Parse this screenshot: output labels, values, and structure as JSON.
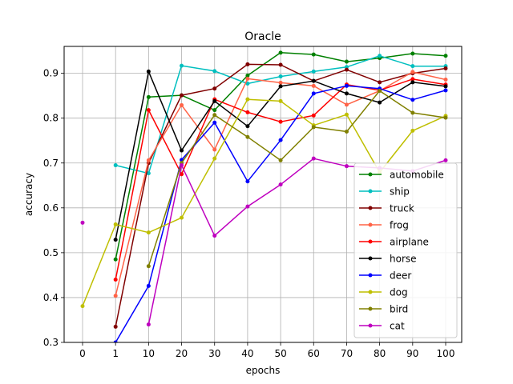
{
  "chart_data": {
    "type": "line",
    "title": "Oracle",
    "xlabel": "epochs",
    "ylabel": "accuracy",
    "x": [
      "0",
      "1",
      "10",
      "20",
      "30",
      "40",
      "50",
      "60",
      "70",
      "80",
      "90",
      "100"
    ],
    "ylim": [
      0.3,
      0.96
    ],
    "yticks": [
      0.3,
      0.4,
      0.5,
      0.6,
      0.7,
      0.8,
      0.9
    ],
    "grid": true,
    "legend_position": "lower-right",
    "series": [
      {
        "name": "automobile",
        "color": "#008000",
        "values": [
          null,
          0.485,
          0.847,
          0.851,
          0.818,
          0.895,
          0.946,
          0.942,
          0.926,
          0.934,
          0.944,
          0.939
        ]
      },
      {
        "name": "ship",
        "color": "#00bfbf",
        "values": [
          null,
          0.695,
          0.677,
          0.917,
          0.905,
          0.877,
          0.893,
          0.904,
          0.914,
          0.939,
          0.916,
          0.916
        ]
      },
      {
        "name": "truck",
        "color": "#800000",
        "values": [
          null,
          0.335,
          0.7,
          0.851,
          0.866,
          0.92,
          0.919,
          0.883,
          0.908,
          0.88,
          0.9,
          0.911
        ]
      },
      {
        "name": "frog",
        "color": "#ff6347",
        "values": [
          null,
          0.404,
          0.706,
          0.829,
          0.73,
          0.888,
          0.879,
          0.872,
          0.83,
          0.861,
          0.903,
          0.886
        ]
      },
      {
        "name": "airplane",
        "color": "#ff0000",
        "values": [
          null,
          0.44,
          0.818,
          0.675,
          0.842,
          0.813,
          0.792,
          0.806,
          0.875,
          0.862,
          0.887,
          0.875
        ]
      },
      {
        "name": "horse",
        "color": "#000000",
        "values": [
          null,
          0.529,
          0.904,
          0.728,
          0.838,
          0.782,
          0.871,
          0.883,
          0.855,
          0.835,
          0.88,
          0.871
        ]
      },
      {
        "name": "deer",
        "color": "#0000ff",
        "values": [
          null,
          0.3,
          0.426,
          0.707,
          0.79,
          0.659,
          0.751,
          0.855,
          0.872,
          0.866,
          0.841,
          0.862
        ]
      },
      {
        "name": "dog",
        "color": "#bfbf00",
        "values": [
          0.381,
          0.563,
          0.545,
          0.578,
          0.71,
          0.842,
          0.838,
          0.784,
          0.808,
          0.679,
          0.772,
          0.805
        ]
      },
      {
        "name": "bird",
        "color": "#808000",
        "values": [
          null,
          null,
          0.47,
          0.7,
          0.807,
          0.758,
          0.706,
          0.78,
          0.77,
          0.861,
          0.812,
          0.801
        ]
      },
      {
        "name": "cat",
        "color": "#bf00bf",
        "values": [
          0.567,
          null,
          0.34,
          0.695,
          0.538,
          0.603,
          0.652,
          0.71,
          0.693,
          0.689,
          0.682,
          0.706
        ]
      }
    ]
  }
}
